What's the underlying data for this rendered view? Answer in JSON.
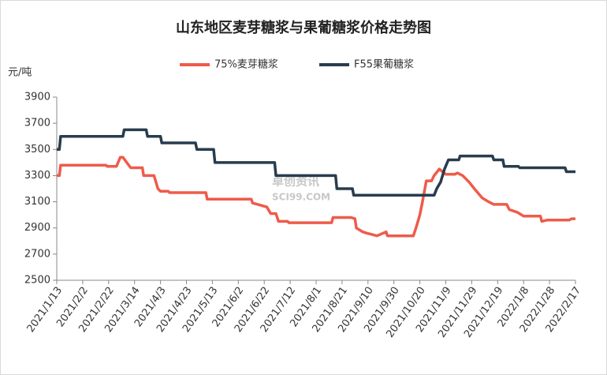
{
  "chart_data": {
    "type": "line",
    "title": "山东地区麦芽糖浆与果葡糖浆价格走势图",
    "y_label": "元/吨",
    "watermark": [
      "卓创资讯",
      "SCI99.COM"
    ],
    "xlim": [
      "2021/1/13",
      "2022/2/17"
    ],
    "xticks": [
      "2021/1/13",
      "2021/2/2",
      "2021/2/22",
      "2021/3/14",
      "2021/4/3",
      "2021/4/23",
      "2021/5/13",
      "2021/6/2",
      "2021/6/22",
      "2021/7/12",
      "2021/8/1",
      "2021/8/21",
      "2021/9/10",
      "2021/9/30",
      "2021/10/20",
      "2021/11/9",
      "2021/11/29",
      "2021/12/19",
      "2022/1/8",
      "2022/1/28",
      "2022/2/17"
    ],
    "ylim": [
      2500,
      3900
    ],
    "yticks": [
      2500,
      2700,
      2900,
      3100,
      3300,
      3500,
      3700,
      3900
    ],
    "legend": "top",
    "series": [
      {
        "name": "75%麦芽糖浆",
        "color": "#ef5b4b",
        "x": [
          "2021/1/13",
          "2021/1/15",
          "2021/1/16",
          "2021/2/20",
          "2021/2/21",
          "2021/2/28",
          "2021/3/3",
          "2021/3/5",
          "2021/3/8",
          "2021/3/11",
          "2021/3/20",
          "2021/3/21",
          "2021/3/29",
          "2021/4/1",
          "2021/4/3",
          "2021/4/9",
          "2021/4/10",
          "2021/5/8",
          "2021/5/9",
          "2021/6/12",
          "2021/6/13",
          "2021/6/17",
          "2021/6/24",
          "2021/6/27",
          "2021/7/1",
          "2021/7/3",
          "2021/7/10",
          "2021/7/11",
          "2021/8/13",
          "2021/8/14",
          "2021/8/28",
          "2021/8/31",
          "2021/9/1",
          "2021/9/6",
          "2021/9/9",
          "2021/9/17",
          "2021/9/24",
          "2021/9/25",
          "2021/10/15",
          "2021/10/17",
          "2021/10/20",
          "2021/10/22",
          "2021/10/25",
          "2021/10/29",
          "2021/10/31",
          "2021/11/4",
          "2021/11/9",
          "2021/11/16",
          "2021/11/18",
          "2021/11/22",
          "2021/11/27",
          "2021/12/1",
          "2021/12/7",
          "2021/12/12",
          "2021/12/16",
          "2021/12/26",
          "2021/12/28",
          "2022/1/3",
          "2022/1/8",
          "2022/1/21",
          "2022/1/22",
          "2022/1/26",
          "2022/2/12",
          "2022/2/14",
          "2022/2/17"
        ],
        "values": [
          3300,
          3300,
          3380,
          3380,
          3370,
          3370,
          3440,
          3440,
          3400,
          3360,
          3360,
          3300,
          3300,
          3200,
          3180,
          3180,
          3170,
          3170,
          3120,
          3120,
          3090,
          3080,
          3060,
          3010,
          3010,
          2950,
          2950,
          2940,
          2940,
          2980,
          2980,
          2970,
          2900,
          2870,
          2860,
          2840,
          2870,
          2840,
          2840,
          2900,
          3000,
          3100,
          3260,
          3260,
          3300,
          3350,
          3310,
          3310,
          3320,
          3300,
          3250,
          3200,
          3130,
          3100,
          3080,
          3080,
          3040,
          3020,
          2990,
          2990,
          2950,
          2960,
          2960,
          2970,
          2970
        ]
      },
      {
        "name": "F55果葡糖浆",
        "color": "#283c4e",
        "x": [
          "2021/1/13",
          "2021/1/15",
          "2021/1/16",
          "2021/3/5",
          "2021/3/6",
          "2021/3/23",
          "2021/3/24",
          "2021/4/3",
          "2021/4/4",
          "2021/4/30",
          "2021/5/1",
          "2021/5/14",
          "2021/5/15",
          "2021/6/30",
          "2021/7/1",
          "2021/8/16",
          "2021/8/17",
          "2021/8/29",
          "2021/8/30",
          "2021/10/31",
          "2021/11/2",
          "2021/11/5",
          "2021/11/8",
          "2021/11/11",
          "2021/11/19",
          "2021/11/20",
          "2021/12/15",
          "2021/12/16",
          "2021/12/23",
          "2021/12/24",
          "2022/1/4",
          "2022/1/5",
          "2022/2/9",
          "2022/2/10",
          "2022/2/17"
        ],
        "values": [
          3500,
          3500,
          3600,
          3600,
          3650,
          3650,
          3600,
          3600,
          3550,
          3550,
          3500,
          3500,
          3400,
          3400,
          3300,
          3300,
          3200,
          3200,
          3150,
          3150,
          3200,
          3250,
          3350,
          3420,
          3420,
          3450,
          3450,
          3420,
          3420,
          3370,
          3370,
          3360,
          3360,
          3330,
          3330
        ]
      }
    ]
  }
}
